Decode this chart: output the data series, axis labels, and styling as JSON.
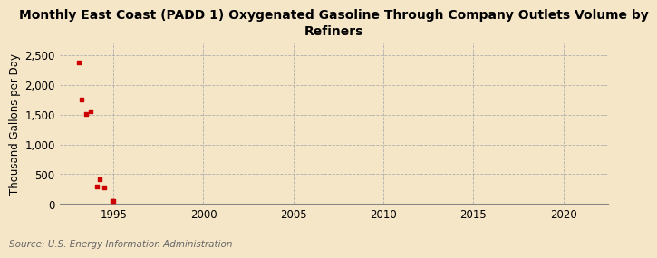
{
  "title": "Monthly East Coast (PADD 1) Oxygenated Gasoline Through Company Outlets Volume by\nRefiners",
  "ylabel": "Thousand Gallons per Day",
  "source": "Source: U.S. Energy Information Administration",
  "background_color": "#f5e6c8",
  "plot_bg_color": "#f5e6c8",
  "x_data": [
    1993.08,
    1993.25,
    1993.5,
    1993.75,
    1994.08,
    1994.25,
    1994.5,
    1994.92,
    1995.0
  ],
  "y_data": [
    2370,
    1750,
    1510,
    1560,
    300,
    410,
    280,
    55,
    55
  ],
  "marker_color": "#cc0000",
  "xlim": [
    1992.0,
    2022.5
  ],
  "ylim": [
    0,
    2700
  ],
  "yticks": [
    0,
    500,
    1000,
    1500,
    2000,
    2500
  ],
  "ytick_labels": [
    "0",
    "500",
    "1,000",
    "1,500",
    "2,000",
    "2,500"
  ],
  "xticks": [
    1995,
    2000,
    2005,
    2010,
    2015,
    2020
  ],
  "title_fontsize": 10,
  "label_fontsize": 8.5,
  "tick_fontsize": 8.5,
  "source_fontsize": 7.5
}
